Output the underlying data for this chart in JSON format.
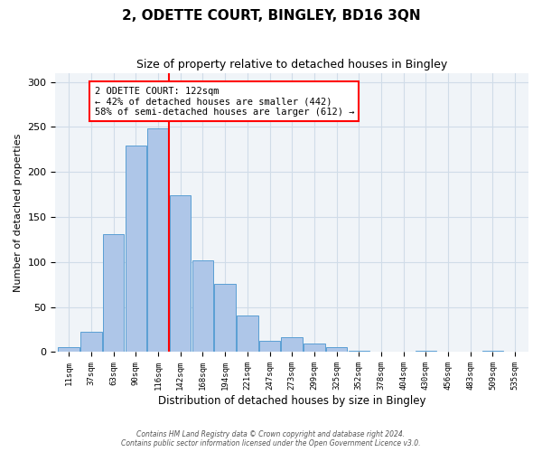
{
  "title": "2, ODETTE COURT, BINGLEY, BD16 3QN",
  "subtitle": "Size of property relative to detached houses in Bingley",
  "xlabel": "Distribution of detached houses by size in Bingley",
  "ylabel": "Number of detached properties",
  "bins": [
    "11sqm",
    "37sqm",
    "63sqm",
    "90sqm",
    "116sqm",
    "142sqm",
    "168sqm",
    "194sqm",
    "221sqm",
    "247sqm",
    "273sqm",
    "299sqm",
    "325sqm",
    "352sqm",
    "378sqm",
    "404sqm",
    "430sqm",
    "456sqm",
    "483sqm",
    "509sqm",
    "535sqm"
  ],
  "counts": [
    5,
    23,
    131,
    229,
    248,
    174,
    102,
    76,
    41,
    13,
    17,
    10,
    5,
    1,
    0,
    0,
    1,
    0,
    0,
    1,
    0
  ],
  "bar_color": "#aec6e8",
  "bar_edge_color": "#5a9fd4",
  "vline_x": 4.5,
  "vline_color": "red",
  "ylim": [
    0,
    310
  ],
  "yticks": [
    0,
    50,
    100,
    150,
    200,
    250,
    300
  ],
  "annotation_text": "2 ODETTE COURT: 122sqm\n← 42% of detached houses are smaller (442)\n58% of semi-detached houses are larger (612) →",
  "annotation_box_color": "white",
  "annotation_box_edge": "red",
  "footer": "Contains HM Land Registry data © Crown copyright and database right 2024.\nContains public sector information licensed under the Open Government Licence v3.0.",
  "grid_color": "#d0dce8",
  "background_color": "#f0f4f8"
}
